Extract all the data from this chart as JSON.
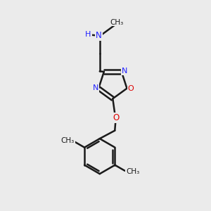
{
  "bg_color": "#ebebeb",
  "bond_color": "#1a1a1a",
  "N_color": "#2020ff",
  "O_color": "#dd0000",
  "line_width": 1.8,
  "figsize": [
    3.0,
    3.0
  ],
  "dpi": 100,
  "xlim": [
    0,
    10
  ],
  "ylim": [
    0,
    10
  ]
}
